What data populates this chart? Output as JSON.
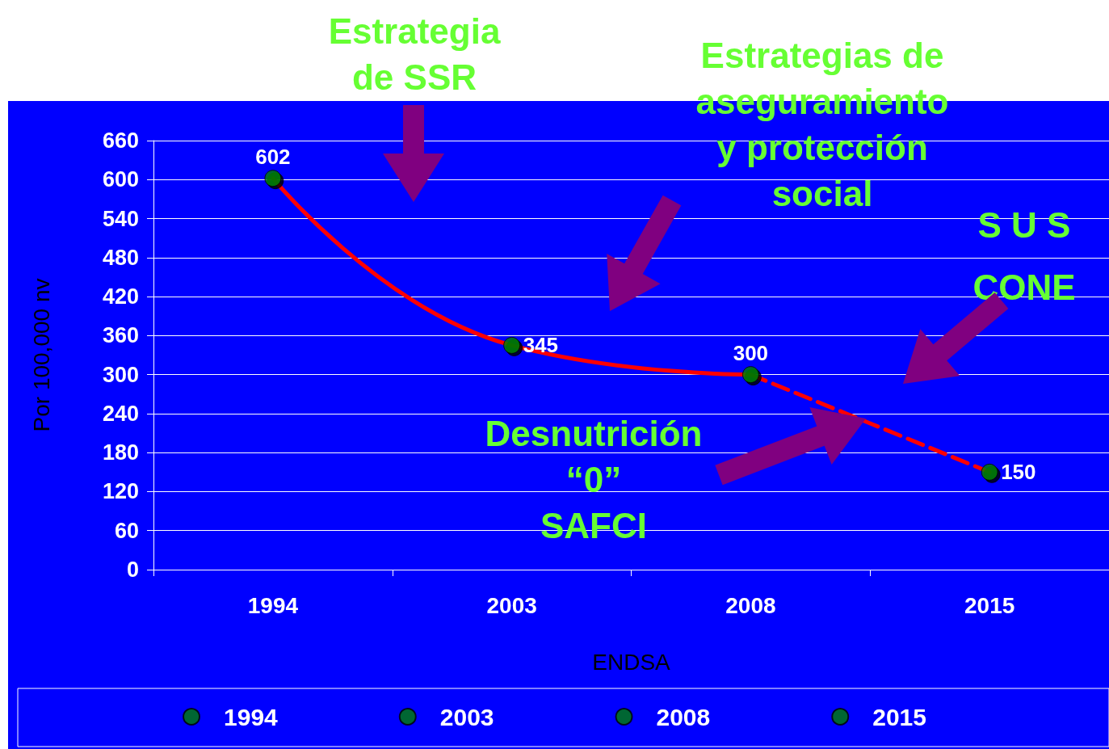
{
  "chart_data": {
    "type": "line",
    "categories": [
      "1994",
      "2003",
      "2008",
      "2015"
    ],
    "series": [
      {
        "color": "#ff0000",
        "values": [
          602,
          345,
          300,
          null
        ],
        "value_labels": [
          "602",
          "345",
          "300",
          null
        ],
        "line_style": "solid",
        "marker": "none"
      },
      {
        "color": "#ff0000",
        "values": [
          null,
          null,
          300,
          150
        ],
        "value_labels": [
          null,
          null,
          null,
          "150"
        ],
        "line_style": "dashed",
        "marker": "none"
      },
      {
        "type": "scatter",
        "name": "1994",
        "color": "#008000",
        "values": [
          602,
          null,
          null,
          null
        ],
        "marker": "circle"
      },
      {
        "type": "scatter",
        "name": "2003",
        "color": "#008000",
        "values": [
          null,
          345,
          null,
          null
        ],
        "marker": "circle"
      },
      {
        "type": "scatter",
        "name": "2008",
        "color": "#008000",
        "values": [
          null,
          null,
          300,
          null
        ],
        "marker": "circle"
      },
      {
        "type": "scatter",
        "name": "2015",
        "color": "#008000",
        "values": [
          null,
          null,
          null,
          150
        ],
        "marker": "circle"
      }
    ],
    "xlabel": "ENDSA",
    "ylabel": "Por 100,000 nv",
    "ylim": [
      0,
      660
    ],
    "yticks": [
      0,
      60,
      120,
      180,
      240,
      300,
      360,
      420,
      480,
      540,
      600,
      660
    ],
    "grid": "y",
    "legend": "bottom",
    "annotations": [
      "Estrategia\nde SSR",
      "Estrategias de\naseguramiento\ny protección\nsocial",
      "S U S",
      "CONE",
      "Desnutrición\n“0”\nSAFCI"
    ]
  }
}
